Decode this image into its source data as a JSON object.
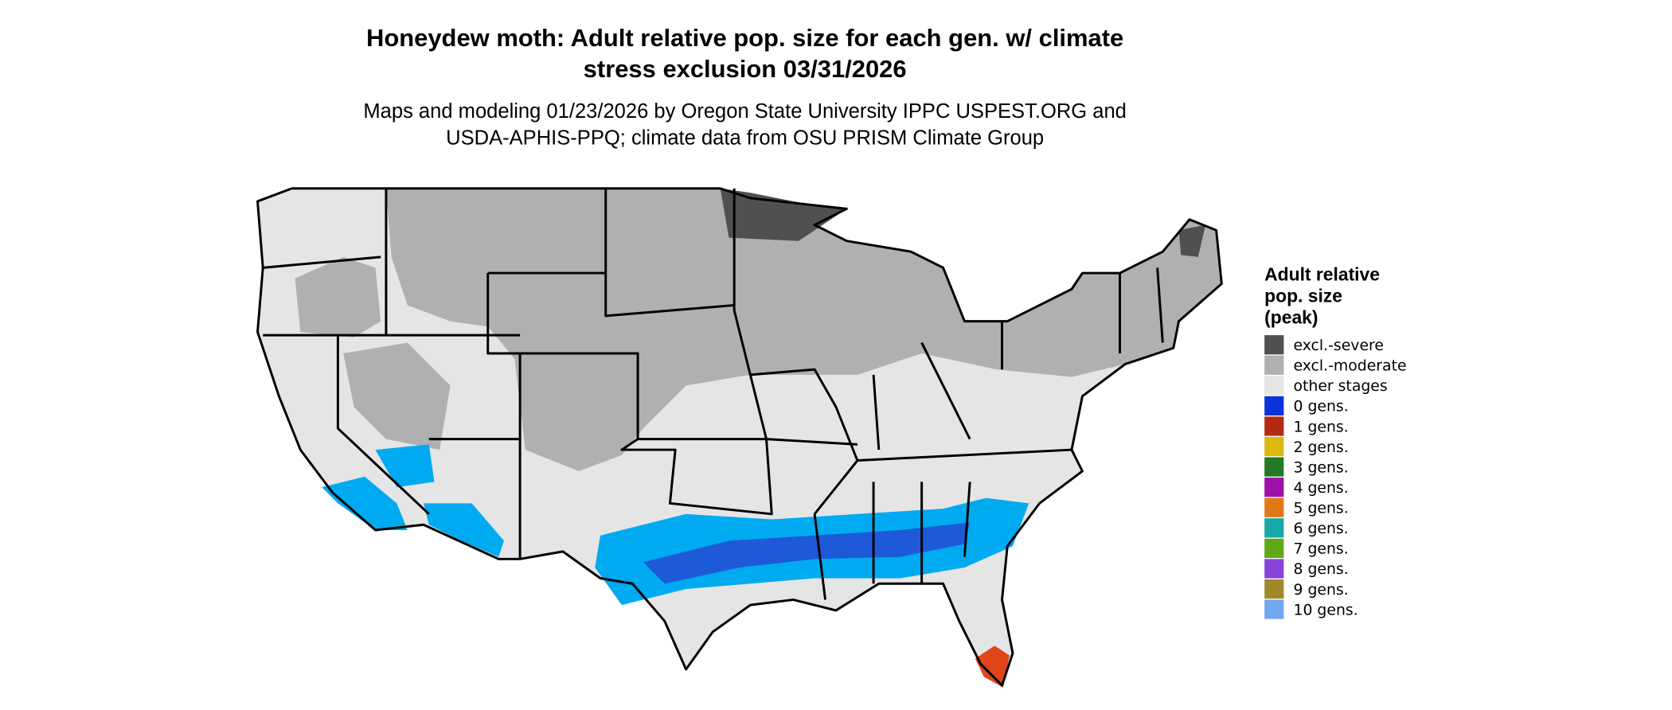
{
  "title": [
    "Honeydew moth: Adult relative pop. size for each gen. w/ climate",
    "stress exclusion 03/31/2026"
  ],
  "subtitle": [
    "Maps and modeling 01/23/2026 by Oregon State University IPPC USPEST.ORG and",
    "USDA-APHIS-PPQ; climate data from OSU PRISM Climate Group"
  ],
  "legend": {
    "title": [
      "Adult relative",
      "pop. size",
      "(peak)"
    ],
    "items": [
      {
        "label": "excl.-severe",
        "color": "#505050"
      },
      {
        "label": "excl.-moderate",
        "color": "#b0b0b0"
      },
      {
        "label": "other stages",
        "color": "#e5e5e5"
      },
      {
        "label": "0 gens.",
        "color": "#0a32d8"
      },
      {
        "label": "1 gens.",
        "color": "#b22a14"
      },
      {
        "label": "2 gens.",
        "color": "#ddb810"
      },
      {
        "label": "3 gens.",
        "color": "#237a23"
      },
      {
        "label": "4 gens.",
        "color": "#a010a8"
      },
      {
        "label": "5 gens.",
        "color": "#e07818"
      },
      {
        "label": "6 gens.",
        "color": "#18a8a8"
      },
      {
        "label": "7 gens.",
        "color": "#60a818"
      },
      {
        "label": "8 gens.",
        "color": "#8844d8"
      },
      {
        "label": "9 gens.",
        "color": "#a08a28"
      },
      {
        "label": "10 gens.",
        "color": "#70a8f0"
      }
    ]
  }
}
